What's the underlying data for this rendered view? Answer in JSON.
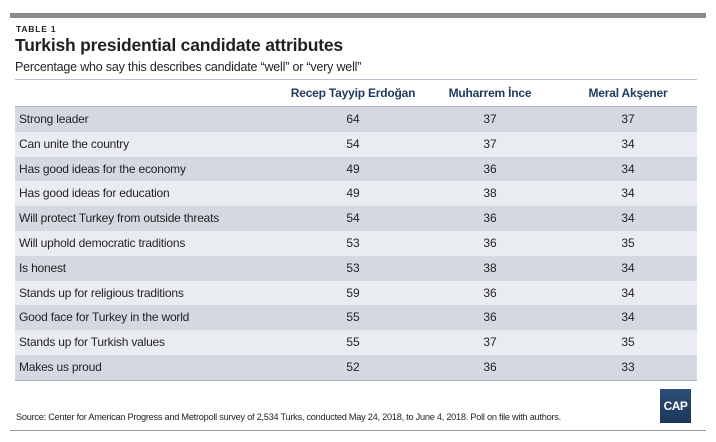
{
  "header": {
    "kicker": "TABLE 1",
    "title": "Turkish presidential candidate attributes",
    "subtitle": "Percentage who say this describes candidate “well” or “very well”"
  },
  "table": {
    "columns": [
      "",
      "Recep Tayyip Erdoğan",
      "Muharrem İnce",
      "Meral Akşener"
    ],
    "rows": [
      {
        "label": "Strong leader",
        "values": [
          "64",
          "37",
          "37"
        ]
      },
      {
        "label": "Can unite the country",
        "values": [
          "54",
          "37",
          "34"
        ]
      },
      {
        "label": "Has good ideas for the economy",
        "values": [
          "49",
          "36",
          "34"
        ]
      },
      {
        "label": "Has good ideas for education",
        "values": [
          "49",
          "38",
          "34"
        ]
      },
      {
        "label": "Will protect Turkey from outside threats",
        "values": [
          "54",
          "36",
          "34"
        ]
      },
      {
        "label": "Will uphold democratic traditions",
        "values": [
          "53",
          "36",
          "35"
        ]
      },
      {
        "label": "Is honest",
        "values": [
          "53",
          "38",
          "34"
        ]
      },
      {
        "label": "Stands up for religious traditions",
        "values": [
          "59",
          "36",
          "34"
        ]
      },
      {
        "label": "Good face for Turkey in the world",
        "values": [
          "55",
          "36",
          "34"
        ]
      },
      {
        "label": "Stands up for Turkish values",
        "values": [
          "55",
          "37",
          "35"
        ]
      },
      {
        "label": "Makes us proud",
        "values": [
          "52",
          "36",
          "33"
        ]
      }
    ]
  },
  "footer": {
    "source": "Source: Center for American Progress and Metropoll survey of 2,534 Turks, conducted May 24, 2018, to June 4, 2018. Poll on file with authors.",
    "logo_text": "CAP"
  },
  "colors": {
    "header_text": "#1f3a5f",
    "row_dark": "#d3d8e1",
    "row_light": "#e9ecf1",
    "top_bar": "#8a8b8f",
    "logo_bg": "#1b3659"
  }
}
